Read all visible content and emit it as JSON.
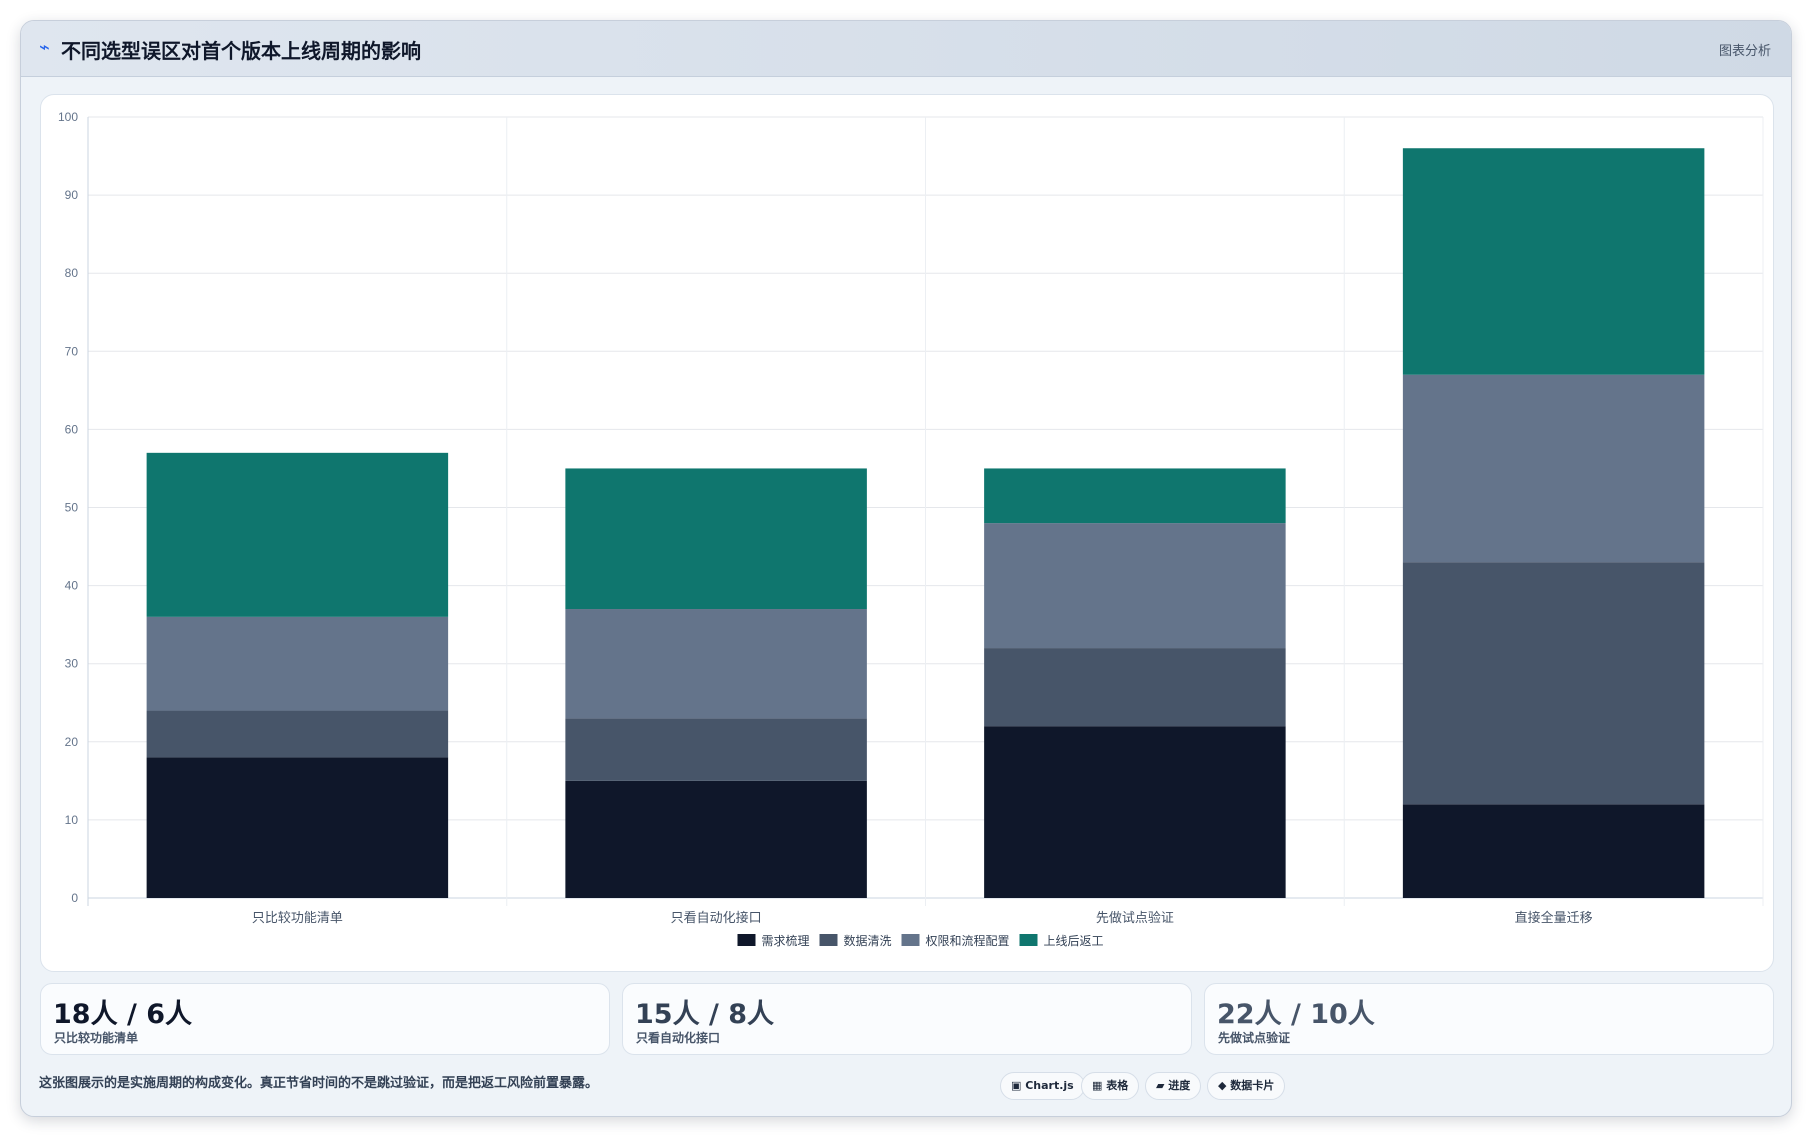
{
  "header": {
    "icon": "chart-line-icon",
    "title": "不同选型误区对首个版本上线周期的影响",
    "action_label": "图表分析"
  },
  "chart_data": {
    "type": "bar",
    "stacked": true,
    "categories": [
      "只比较功能清单",
      "只看自动化接口",
      "先做试点验证",
      "直接全量迁移"
    ],
    "series": [
      {
        "name": "需求梳理",
        "values": [
          18,
          15,
          22,
          12
        ],
        "color": "#0f172a"
      },
      {
        "name": "数据清洗",
        "values": [
          6,
          8,
          10,
          31
        ],
        "color": "#475569"
      },
      {
        "name": "权限和流程配置",
        "values": [
          12,
          14,
          16,
          24
        ],
        "color": "#64748b"
      },
      {
        "name": "上线后返工",
        "values": [
          21,
          18,
          7,
          29
        ],
        "color": "#0f766e"
      }
    ],
    "ylim": [
      0,
      100
    ],
    "yticks": [
      0,
      10,
      20,
      30,
      40,
      50,
      60,
      70,
      80,
      90,
      100
    ],
    "grid": true,
    "legend_position": "bottom"
  },
  "stats": [
    {
      "value": "18人 / 6人",
      "label": "只比较功能清单",
      "color": "#0f172a"
    },
    {
      "value": "15人 / 8人",
      "label": "只看自动化接口",
      "color": "#334155"
    },
    {
      "value": "22人 / 10人",
      "label": "先做试点验证",
      "color": "#475569"
    }
  ],
  "footer": {
    "note": "这张图展示的是实施周期的构成变化。真正节省时间的不是跳过验证，而是把返工风险前置暴露。",
    "chips": [
      {
        "icon": "square-icon",
        "label": "▣ Chart.js"
      },
      {
        "icon": "table-icon",
        "label": "▦ 表格"
      },
      {
        "icon": "progress-icon",
        "label": "▰ 进度"
      },
      {
        "icon": "diamond-icon",
        "label": "◆ 数据卡片"
      }
    ]
  }
}
